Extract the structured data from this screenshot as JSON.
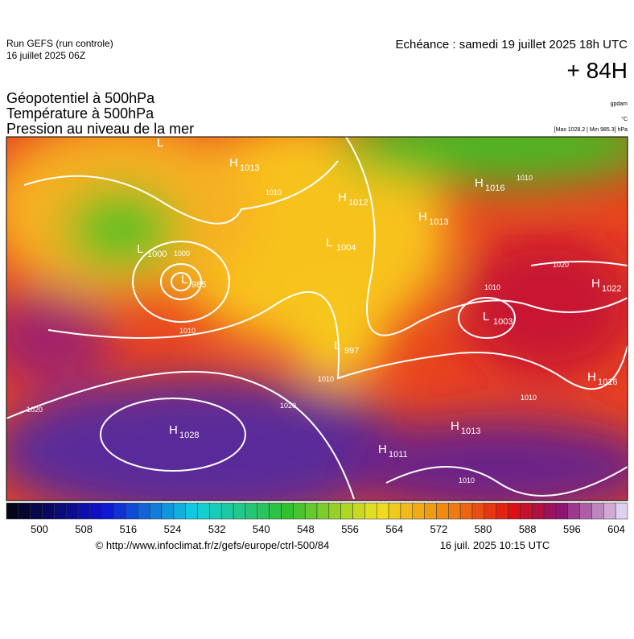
{
  "header": {
    "run": "Run GEFS (run controle)",
    "run_date": "16 juillet 2025 06Z",
    "valid": "Echéance : samedi 19 juillet 2025 18h UTC",
    "lead": "+ 84H"
  },
  "titles": [
    "Géopotentiel à 500hPa",
    "Température à 500hPa",
    "Pression au niveau de la mer"
  ],
  "units": {
    "geopotential": "gpdam",
    "temperature": "°C",
    "pressure": "[Max 1028.2 | Min 985.3] hPa"
  },
  "centers": [
    {
      "letter": "L",
      "value": null
    },
    {
      "letter": "H",
      "value": 1013
    },
    {
      "letter": "H",
      "value": 1012
    },
    {
      "letter": "H",
      "value": 1013
    },
    {
      "letter": "L",
      "value": 1004
    },
    {
      "letter": "L",
      "value": 1000
    },
    {
      "letter": "L",
      "value": 985
    },
    {
      "letter": "H",
      "value": 1016
    },
    {
      "letter": "H",
      "value": 1022
    },
    {
      "letter": "L",
      "value": 1003
    },
    {
      "letter": "L",
      "value": 997
    },
    {
      "letter": "H",
      "value": 1016
    },
    {
      "letter": "H",
      "value": 1013
    },
    {
      "letter": "H",
      "value": 1028
    },
    {
      "letter": "H",
      "value": 1011
    }
  ],
  "isobar_labels": [
    1020,
    1020,
    1010,
    1010,
    1010,
    1010,
    1010,
    1020,
    1000,
    1010,
    1010
  ],
  "colorbar": {
    "ticks": [
      500,
      508,
      516,
      524,
      532,
      540,
      548,
      556,
      564,
      572,
      580,
      588,
      596,
      604
    ]
  },
  "footer": {
    "source": "© http://www.infoclimat.fr/z/gefs/europe/ctrl-500/84",
    "generated": "16 juil. 2025 10:15 UTC"
  }
}
